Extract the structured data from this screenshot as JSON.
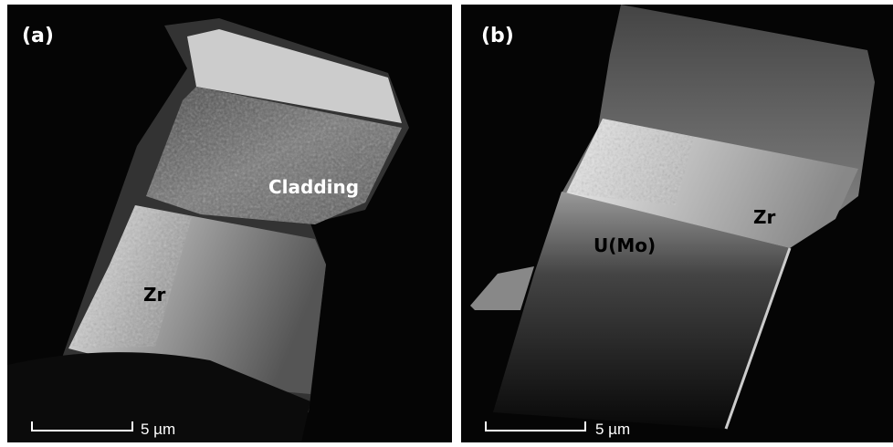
{
  "panels": [
    {
      "label": "(a)",
      "annotations": [
        "Cladding",
        "Zr"
      ],
      "scale_bar": "5 µm"
    },
    {
      "label": "(b)",
      "annotations": [
        "Zr",
        "U(Mo)"
      ],
      "scale_bar": "5 µm"
    }
  ]
}
